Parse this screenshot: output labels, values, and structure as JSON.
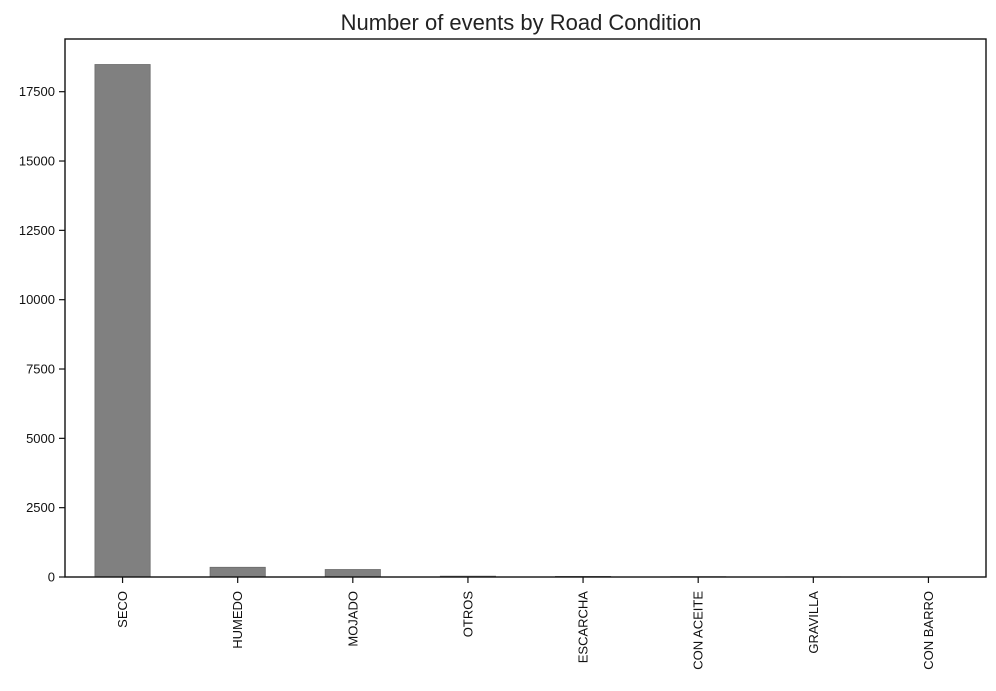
{
  "chart_data": {
    "type": "bar",
    "title": "Number of events by Road Condition",
    "xlabel": "",
    "ylabel": "",
    "categories": [
      "SECO",
      "HUMEDO",
      "MOJADO",
      "OTROS",
      "ESCARCHA",
      "CON ACEITE",
      "GRAVILLA",
      "CON BARRO"
    ],
    "values": [
      18480,
      350,
      270,
      30,
      20,
      10,
      6,
      3
    ],
    "ylim": [
      0,
      19400
    ],
    "yticks": [
      0,
      2500,
      5000,
      7500,
      10000,
      12500,
      15000,
      17500
    ],
    "ytick_labels": [
      "0",
      "2500",
      "5000",
      "7500",
      "10000",
      "12500",
      "15000",
      "17500"
    ],
    "grid": false,
    "legend": "none",
    "bar_color": "#808080"
  }
}
